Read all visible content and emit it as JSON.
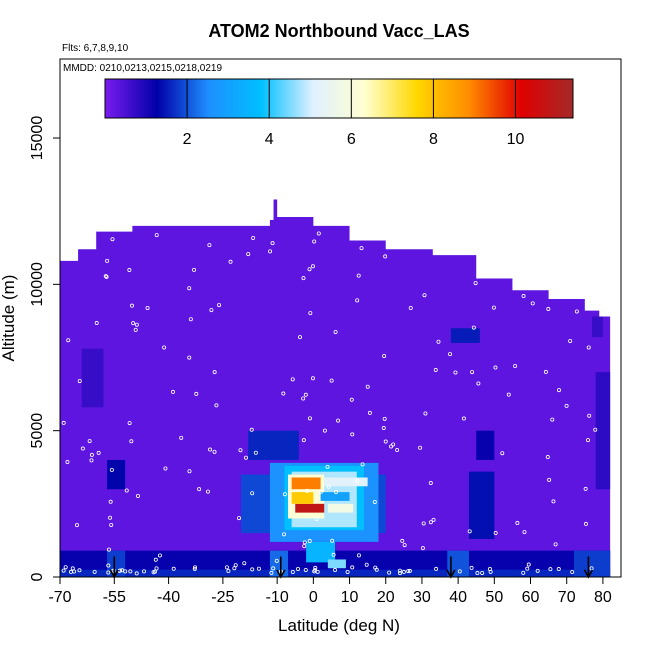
{
  "chart_data": {
    "type": "heatmap",
    "title": "ATOM2 Northbound Vacc_LAS",
    "annotations": [
      "Flts: 6,7,8,9,10",
      "MMDD: 0210,0213,0215,0218,0219"
    ],
    "xlabel": "Latitude (deg N)",
    "ylabel": "Altitude (m)",
    "xlim": [
      -70,
      85
    ],
    "ylim": [
      0,
      17700
    ],
    "x_ticks": [
      -70,
      -55,
      -40,
      -25,
      -10,
      0,
      10,
      20,
      30,
      40,
      50,
      60,
      70,
      80
    ],
    "x_tick_labels": [
      "-70",
      "-55",
      "-40",
      "-25",
      "-10",
      "0",
      "10",
      "20",
      "30",
      "40",
      "50",
      "60",
      "70",
      "80"
    ],
    "y_ticks": [
      0,
      5000,
      10000,
      15000
    ],
    "y_tick_labels": [
      "0",
      "5000",
      "10000",
      "15000"
    ],
    "colorbar": {
      "range": [
        0,
        11.4
      ],
      "ticks": [
        2,
        4,
        6,
        8,
        10
      ],
      "tick_labels": [
        "2",
        "4",
        "6",
        "8",
        "10"
      ],
      "colors": [
        "#7a1cf0",
        "#0000a8",
        "#1e90ff",
        "#00bfff",
        "#e0f0ff",
        "#ffffd0",
        "#ffd700",
        "#ff8c00",
        "#e00000",
        "#a52a2a"
      ]
    },
    "altitude_envelope": [
      {
        "lat": -70,
        "alt": 10800
      },
      {
        "lat": -65,
        "alt": 11200
      },
      {
        "lat": -60,
        "alt": 11800
      },
      {
        "lat": -50,
        "alt": 12000
      },
      {
        "lat": -37,
        "alt": 12000
      },
      {
        "lat": -25,
        "alt": 12000
      },
      {
        "lat": -12,
        "alt": 12200
      },
      {
        "lat": -11,
        "alt": 12900
      },
      {
        "lat": -10,
        "alt": 12300
      },
      {
        "lat": 0,
        "alt": 12000
      },
      {
        "lat": 10,
        "alt": 11500
      },
      {
        "lat": 20,
        "alt": 11200
      },
      {
        "lat": 33,
        "alt": 11000
      },
      {
        "lat": 45,
        "alt": 10200
      },
      {
        "lat": 55,
        "alt": 9800
      },
      {
        "lat": 65,
        "alt": 9500
      },
      {
        "lat": 75,
        "alt": 9100
      },
      {
        "lat": 79,
        "alt": 8900
      },
      {
        "lat": 82,
        "alt": 8900
      }
    ],
    "background_value": 0.3,
    "cells": [
      {
        "lat0": -70,
        "lat1": 82,
        "alt0": 0,
        "alt1": 900,
        "value": 1.2
      },
      {
        "lat0": -70,
        "lat1": 82,
        "alt0": 0,
        "alt1": 250,
        "value": 1.6
      },
      {
        "lat0": -57,
        "lat1": -52,
        "alt0": 0,
        "alt1": 900,
        "value": 1.8
      },
      {
        "lat0": -57,
        "lat1": -52,
        "alt0": 3000,
        "alt1": 4000,
        "value": 1.3
      },
      {
        "lat0": -64,
        "lat1": -58,
        "alt0": 5800,
        "alt1": 7800,
        "value": 0.7
      },
      {
        "lat0": -18,
        "lat1": -4,
        "alt0": 4000,
        "alt1": 5000,
        "value": 1.6
      },
      {
        "lat0": -20,
        "lat1": 20,
        "alt0": 1500,
        "alt1": 3500,
        "value": 1.9
      },
      {
        "lat0": -12,
        "lat1": 18,
        "alt0": 1200,
        "alt1": 3900,
        "value": 2.6
      },
      {
        "lat0": -8,
        "lat1": 14,
        "alt0": 1600,
        "alt1": 3800,
        "value": 3.8
      },
      {
        "lat0": -6,
        "lat1": 12,
        "alt0": 1700,
        "alt1": 3600,
        "value": 4.8
      },
      {
        "lat0": -7,
        "lat1": 3,
        "alt0": 2000,
        "alt1": 3500,
        "value": 6.2
      },
      {
        "lat0": -6,
        "lat1": 2,
        "alt0": 3000,
        "alt1": 3400,
        "value": 9.0
      },
      {
        "lat0": -5,
        "lat1": 3,
        "alt0": 2200,
        "alt1": 2500,
        "value": 10.8
      },
      {
        "lat0": -6,
        "lat1": 0,
        "alt0": 2500,
        "alt1": 2900,
        "value": 7.8
      },
      {
        "lat0": 2,
        "lat1": 10,
        "alt0": 2600,
        "alt1": 2900,
        "value": 3.0
      },
      {
        "lat0": 4,
        "lat1": 11,
        "alt0": 2200,
        "alt1": 2500,
        "value": 5.8
      },
      {
        "lat0": 3,
        "lat1": 15,
        "alt0": 3100,
        "alt1": 3400,
        "value": 5.2
      },
      {
        "lat0": -2,
        "lat1": 6,
        "alt0": 500,
        "alt1": 1200,
        "value": 3.5
      },
      {
        "lat0": 4,
        "lat1": 9,
        "alt0": 300,
        "alt1": 600,
        "value": 4.5
      },
      {
        "lat0": -12,
        "lat1": -7,
        "alt0": 0,
        "alt1": 900,
        "value": 2.2
      },
      {
        "lat0": 37,
        "lat1": 43,
        "alt0": 0,
        "alt1": 900,
        "value": 2.0
      },
      {
        "lat0": 43,
        "lat1": 50,
        "alt0": 1300,
        "alt1": 3600,
        "value": 1.4
      },
      {
        "lat0": 45,
        "lat1": 50,
        "alt0": 4000,
        "alt1": 5000,
        "value": 1.2
      },
      {
        "lat0": 38,
        "lat1": 46,
        "alt0": 8000,
        "alt1": 8500,
        "value": 1.5
      },
      {
        "lat0": 72,
        "lat1": 82,
        "alt0": 0,
        "alt1": 900,
        "value": 1.8
      },
      {
        "lat0": 78,
        "lat1": 82,
        "alt0": 3000,
        "alt1": 7000,
        "value": 0.8
      },
      {
        "lat0": 77,
        "lat1": 80,
        "alt0": 8200,
        "alt1": 8900,
        "value": 0.7
      }
    ],
    "profile_markers_lat": [
      -55,
      -9,
      38,
      76
    ]
  }
}
